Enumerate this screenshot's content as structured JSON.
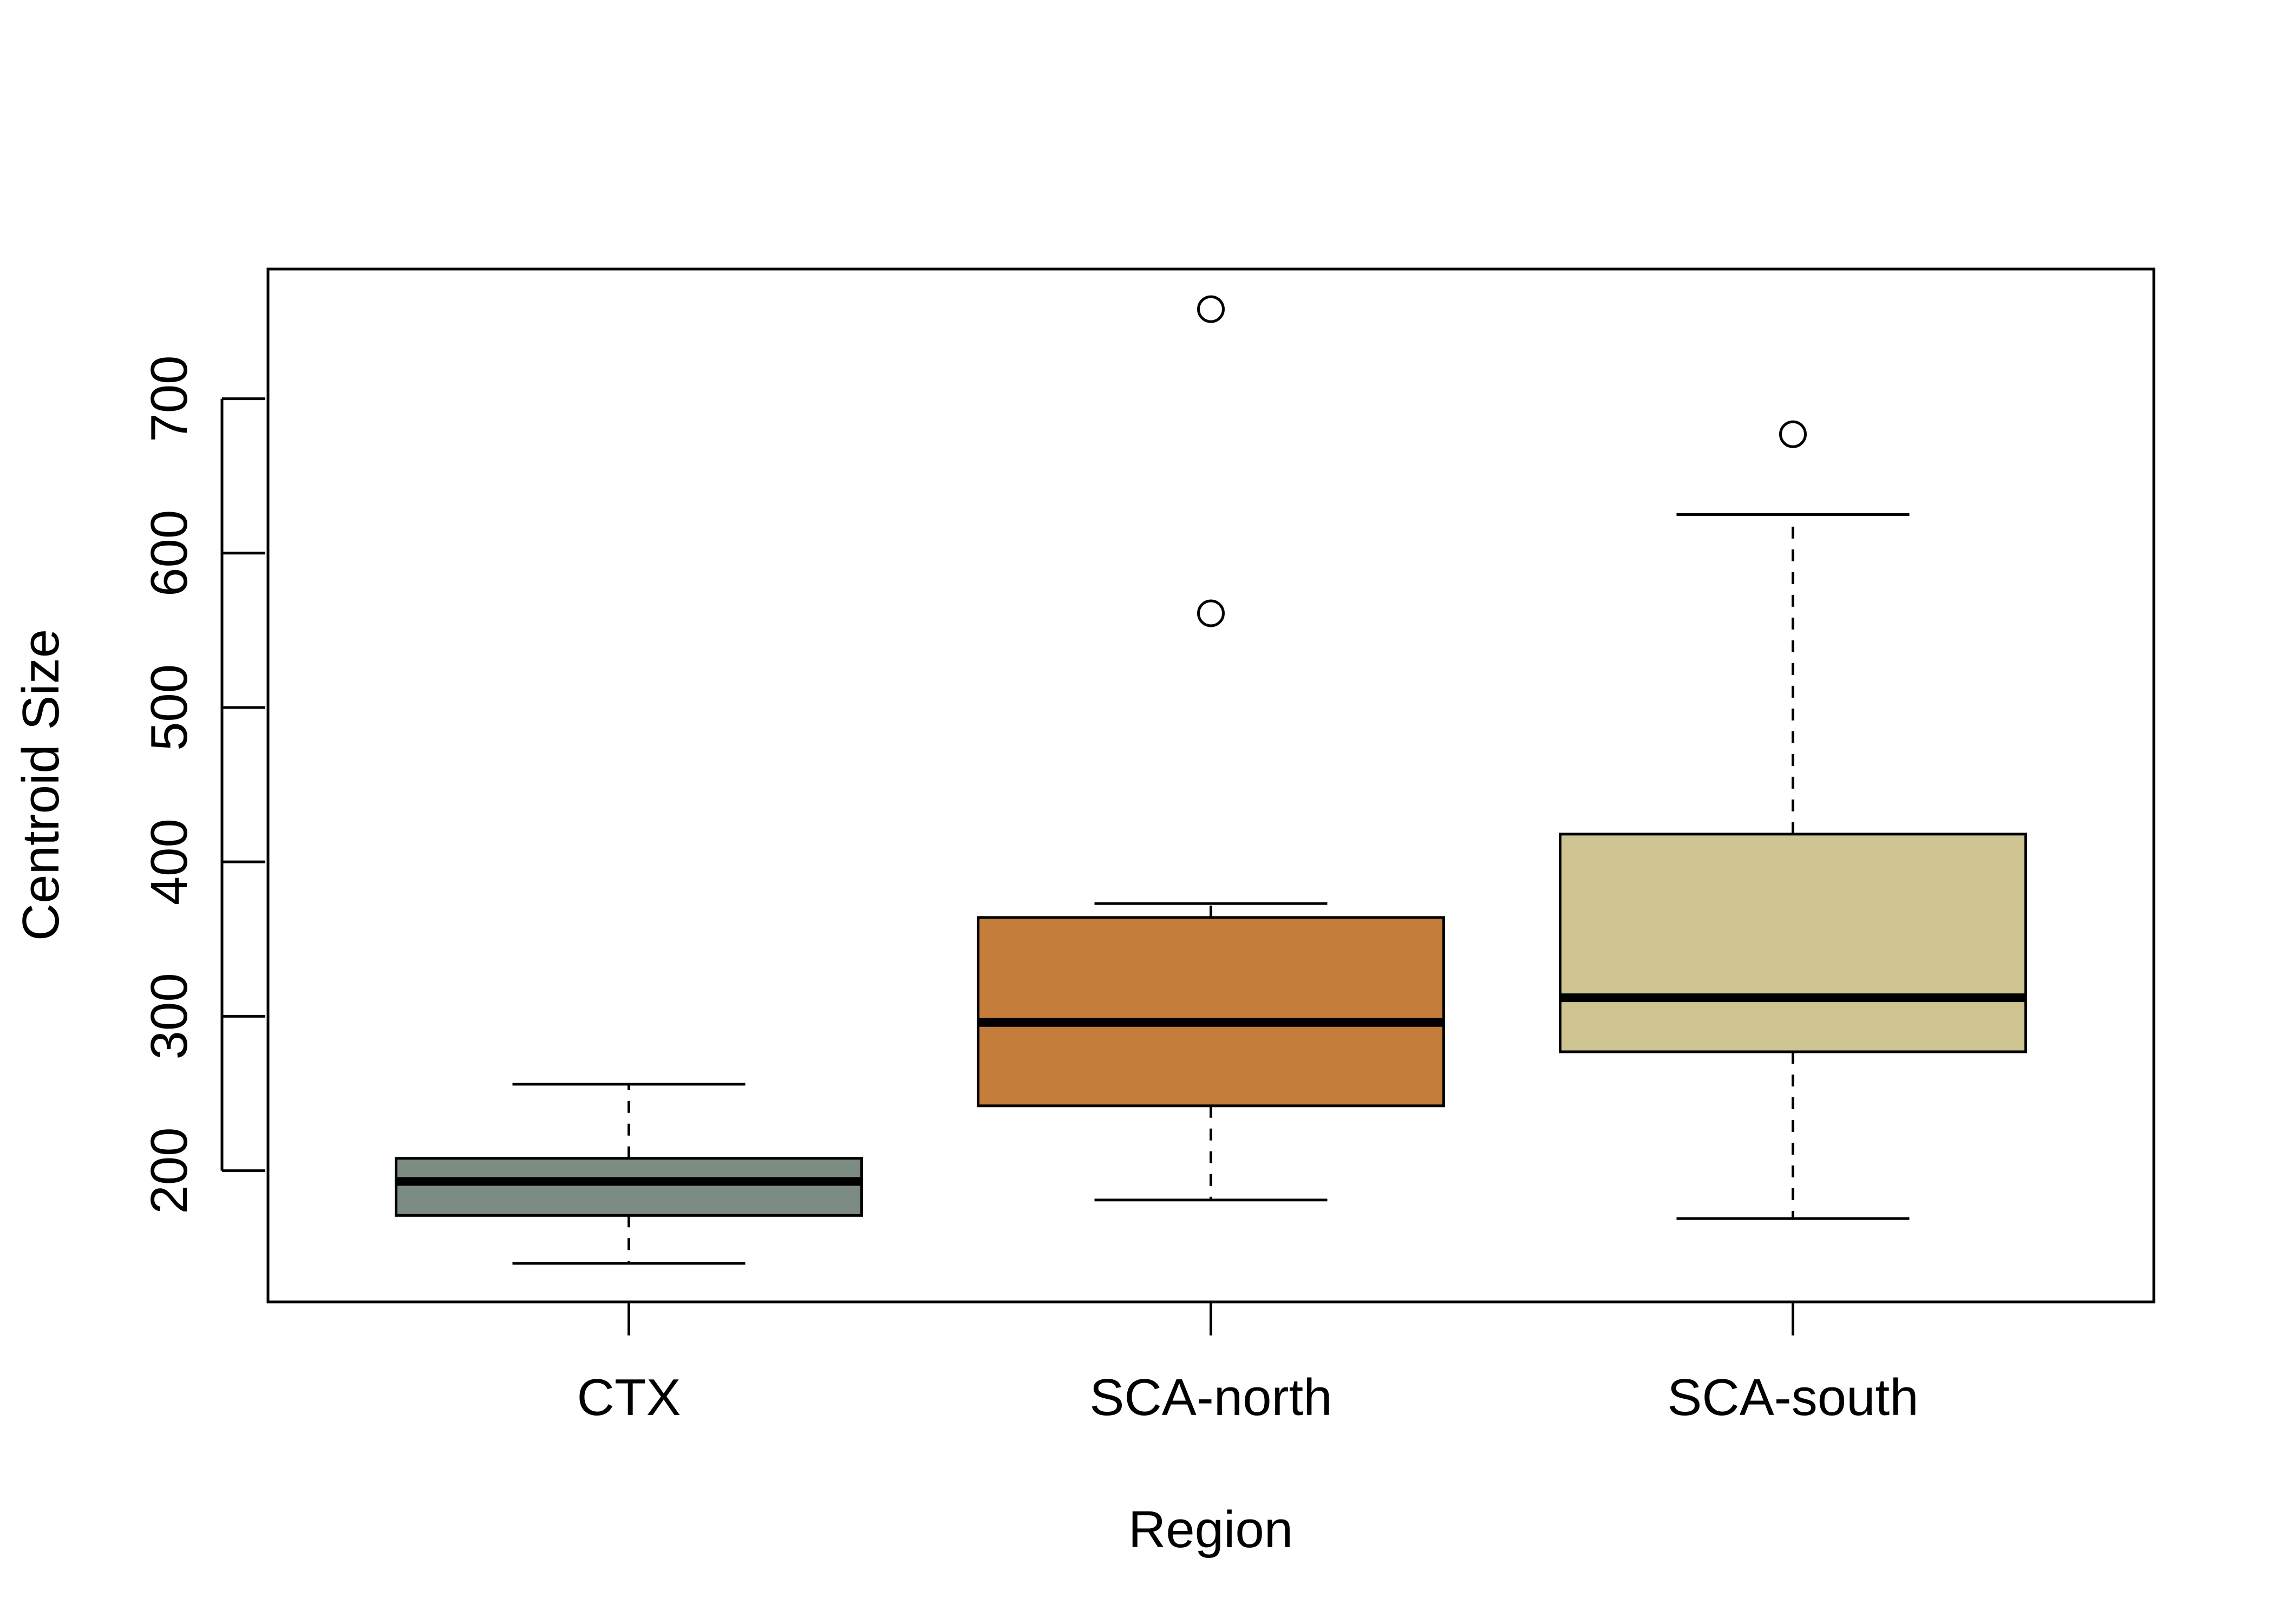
{
  "chart_data": {
    "type": "boxplot",
    "xlabel": "Region",
    "ylabel": "Centroid Size",
    "categories": [
      "CTX",
      "SCA-north",
      "SCA-south"
    ],
    "y_ticks": [
      200,
      300,
      400,
      500,
      600,
      700
    ],
    "y_tick_labels": [
      "200",
      "300",
      "400",
      "500",
      "600",
      "700"
    ],
    "ylim": [
      115,
      784
    ],
    "grid": false,
    "legend": "none",
    "boxes": [
      {
        "name": "CTX",
        "whisker_low": 140,
        "q1": 171,
        "median": 193,
        "q3": 208,
        "whisker_high": 256,
        "outliers": [],
        "color": "#7C8C82"
      },
      {
        "name": "SCA-north",
        "whisker_low": 181,
        "q1": 242,
        "median": 296,
        "q3": 364,
        "whisker_high": 373,
        "outliers": [
          561,
          758
        ],
        "color": "#C47D3B"
      },
      {
        "name": "SCA-south",
        "whisker_low": 169,
        "q1": 277,
        "median": 312,
        "q3": 418,
        "whisker_high": 625,
        "outliers": [
          677
        ],
        "color": "#CEC592"
      }
    ]
  }
}
